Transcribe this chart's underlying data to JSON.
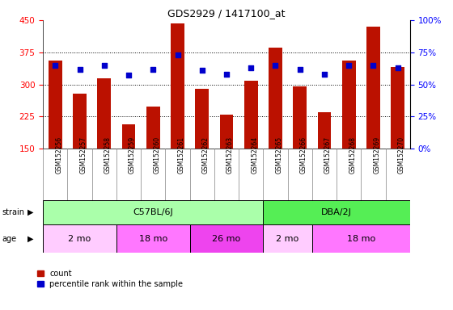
{
  "title": "GDS2929 / 1417100_at",
  "samples": [
    "GSM152256",
    "GSM152257",
    "GSM152258",
    "GSM152259",
    "GSM152260",
    "GSM152261",
    "GSM152262",
    "GSM152263",
    "GSM152264",
    "GSM152265",
    "GSM152266",
    "GSM152267",
    "GSM152268",
    "GSM152269",
    "GSM152270"
  ],
  "counts": [
    355,
    278,
    315,
    207,
    248,
    443,
    290,
    230,
    308,
    385,
    295,
    235,
    355,
    435,
    340
  ],
  "percentile_ranks": [
    65,
    62,
    65,
    57,
    62,
    73,
    61,
    58,
    63,
    65,
    62,
    58,
    65,
    65,
    63
  ],
  "ylim_left": [
    150,
    450
  ],
  "ylim_right": [
    0,
    100
  ],
  "yticks_left": [
    150,
    225,
    300,
    375,
    450
  ],
  "yticks_right": [
    0,
    25,
    50,
    75,
    100
  ],
  "bar_color": "#BB1100",
  "dot_color": "#0000CC",
  "strain_groups": [
    {
      "label": "C57BL/6J",
      "start": 0,
      "end": 9,
      "color": "#AAFFAA"
    },
    {
      "label": "DBA/2J",
      "start": 9,
      "end": 15,
      "color": "#55EE55"
    }
  ],
  "age_groups": [
    {
      "label": "2 mo",
      "start": 0,
      "end": 3,
      "color": "#FFCCFF"
    },
    {
      "label": "18 mo",
      "start": 3,
      "end": 6,
      "color": "#FF77FF"
    },
    {
      "label": "26 mo",
      "start": 6,
      "end": 9,
      "color": "#EE44EE"
    },
    {
      "label": "2 mo",
      "start": 9,
      "end": 11,
      "color": "#FFCCFF"
    },
    {
      "label": "18 mo",
      "start": 11,
      "end": 15,
      "color": "#FF77FF"
    }
  ],
  "grid_dotted_values": [
    225,
    300,
    375
  ],
  "background_color": "#FFFFFF",
  "plot_bg_color": "#FFFFFF",
  "xticklabel_bg": "#DDDDDD"
}
